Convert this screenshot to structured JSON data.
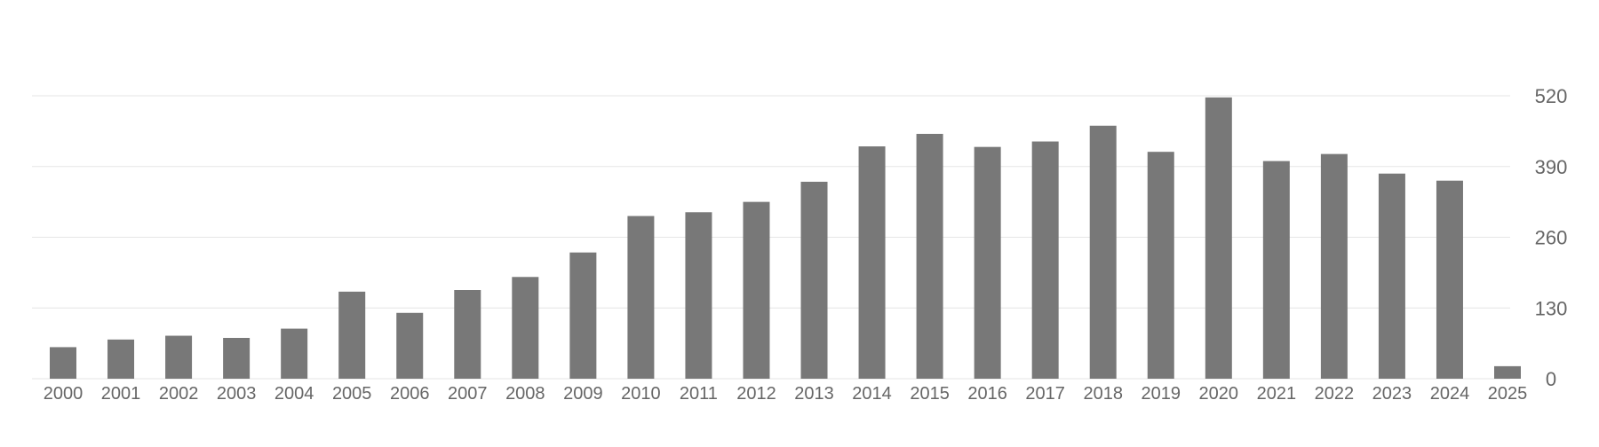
{
  "chart_data": {
    "type": "bar",
    "title": "",
    "xlabel": "",
    "ylabel": "",
    "categories": [
      "2000",
      "2001",
      "2002",
      "2003",
      "2004",
      "2005",
      "2006",
      "2007",
      "2008",
      "2009",
      "2010",
      "2011",
      "2012",
      "2013",
      "2014",
      "2015",
      "2016",
      "2017",
      "2018",
      "2019",
      "2020",
      "2021",
      "2022",
      "2023",
      "2024",
      "2025"
    ],
    "values": [
      58,
      72,
      79,
      75,
      92,
      160,
      121,
      163,
      187,
      232,
      299,
      306,
      325,
      362,
      427,
      450,
      426,
      436,
      465,
      417,
      517,
      400,
      413,
      377,
      364,
      23
    ],
    "ylim": [
      0,
      520
    ],
    "yticks": [
      "0",
      "130",
      "260",
      "390",
      "520"
    ],
    "ytick_values": [
      0,
      130,
      260,
      390,
      520
    ],
    "y_axis_position": "right",
    "grid": true,
    "legend": "none",
    "colors": {
      "bar": "#787878",
      "grid": "#e6e6e6",
      "text": "#666666"
    }
  }
}
